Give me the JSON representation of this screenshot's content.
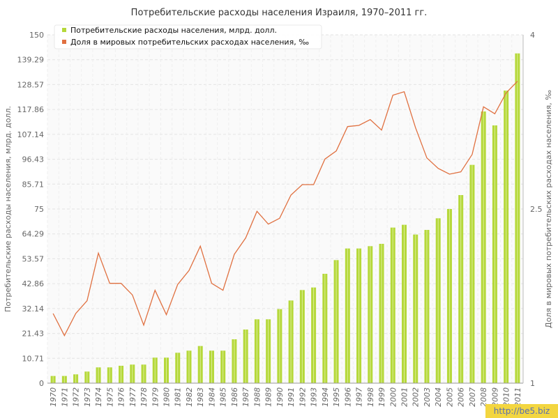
{
  "chart_data": {
    "type": "bar+line",
    "title": "Потребительские расходы населения Израиля, 1970–2011 гг.",
    "ylabel_left": "Потребительские расходы населения, млрд. долл.",
    "ylabel_right": "Доля в мировых потребительских расходах населения, ‰",
    "ylim_left": [
      0,
      150
    ],
    "ylim_right": [
      1,
      4
    ],
    "yticks_left": [
      "0",
      "10.71",
      "21.43",
      "32.14",
      "42.86",
      "53.57",
      "64.29",
      "75",
      "85.71",
      "96.43",
      "107.14",
      "117.86",
      "128.57",
      "139.29",
      "150"
    ],
    "yticks_right": [
      "1",
      "2.5",
      "4"
    ],
    "grid": true,
    "legend_position": "top-left",
    "categories": [
      "1970",
      "1971",
      "1972",
      "1973",
      "1974",
      "1975",
      "1976",
      "1977",
      "1978",
      "1979",
      "1980",
      "1981",
      "1982",
      "1983",
      "1984",
      "1985",
      "1986",
      "1987",
      "1988",
      "1989",
      "1990",
      "1991",
      "1992",
      "1993",
      "1994",
      "1995",
      "1996",
      "1997",
      "1998",
      "1999",
      "2000",
      "2001",
      "2002",
      "2003",
      "2004",
      "2005",
      "2006",
      "2007",
      "2008",
      "2009",
      "2010",
      "2011"
    ],
    "series": [
      {
        "name": "Потребительские расходы населения, млрд. долл.",
        "kind": "bar",
        "axis": "left",
        "color": "#b5d83a",
        "values": [
          3.1,
          3.1,
          3.8,
          5.0,
          6.8,
          6.8,
          7.5,
          8.0,
          8.0,
          11.0,
          11.0,
          13.1,
          14.0,
          16.0,
          14.0,
          14.0,
          18.9,
          23.1,
          27.5,
          27.5,
          31.9,
          35.6,
          40.1,
          41.2,
          47.1,
          53.0,
          58.0,
          58.0,
          59.0,
          60.0,
          67.0,
          68.2,
          64.0,
          66.0,
          71.0,
          75.0,
          81.0,
          94.0,
          117.0,
          111.0,
          126.0,
          142.0
        ]
      },
      {
        "name": "Доля в мировых потребительских расходах населения, ‰",
        "kind": "line",
        "axis": "right",
        "color": "#e07040",
        "values": [
          1.6,
          1.41,
          1.6,
          1.71,
          2.12,
          1.86,
          1.86,
          1.76,
          1.5,
          1.8,
          1.59,
          1.85,
          1.97,
          2.18,
          1.86,
          1.8,
          2.11,
          2.25,
          2.48,
          2.37,
          2.42,
          2.62,
          2.71,
          2.71,
          2.93,
          3.0,
          3.21,
          3.22,
          3.27,
          3.18,
          3.48,
          3.51,
          3.2,
          2.94,
          2.85,
          2.8,
          2.82,
          2.97,
          3.38,
          3.32,
          3.5,
          3.6
        ]
      }
    ]
  },
  "watermark": "http://be5.biz"
}
